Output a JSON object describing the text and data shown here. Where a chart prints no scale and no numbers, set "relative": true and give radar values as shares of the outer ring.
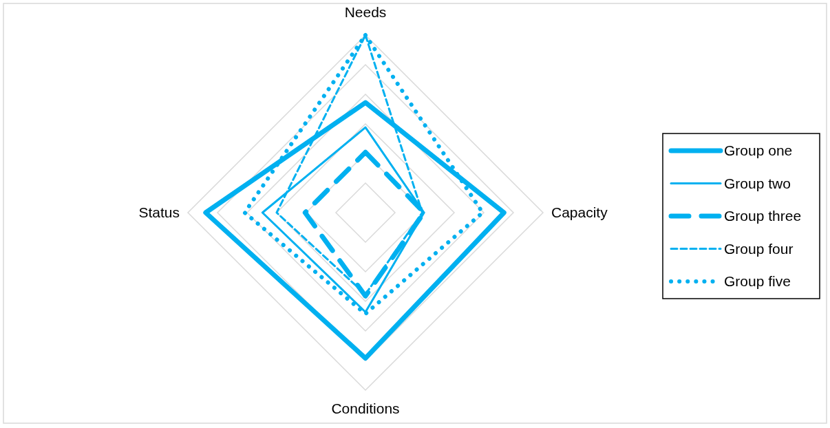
{
  "chart_data": {
    "type": "radar",
    "relative": true,
    "categories": [
      "Needs",
      "Capacity",
      "Conditions",
      "Status"
    ],
    "legend": "right",
    "marker": "none",
    "grid": true,
    "series": [
      {
        "name": "Group one",
        "color": "#00b0f0",
        "line_style": "solid",
        "values": [
          0.62,
          0.78,
          0.82,
          0.9
        ]
      },
      {
        "name": "Group two",
        "color": "#00b0f0",
        "line_style": "solid",
        "values": [
          0.48,
          0.33,
          0.56,
          0.58
        ]
      },
      {
        "name": "Group three",
        "color": "#00b0f0",
        "line_style": "dashed",
        "values": [
          0.34,
          0.33,
          0.47,
          0.34
        ]
      },
      {
        "name": "Group four",
        "color": "#00b0f0",
        "line_style": "dashed",
        "values": [
          1.0,
          0.32,
          0.46,
          0.5
        ]
      },
      {
        "name": "Group five",
        "color": "#00b0f0",
        "line_style": "dotted",
        "values": [
          1.0,
          0.66,
          0.57,
          0.68
        ]
      }
    ]
  }
}
